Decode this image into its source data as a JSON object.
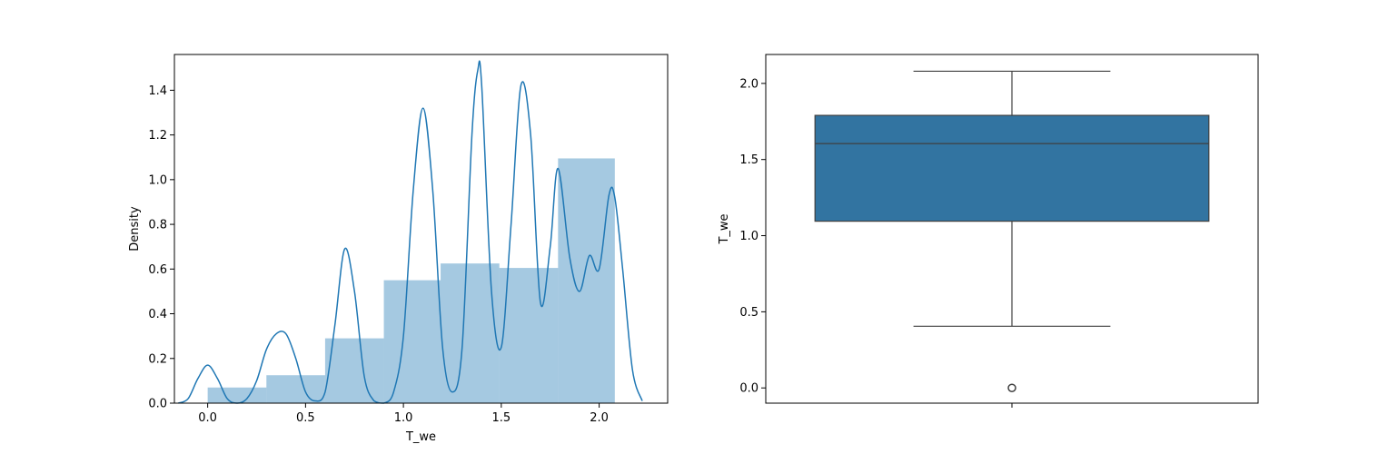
{
  "chart_data": [
    {
      "type": "bar",
      "subtype": "histogram-with-kde",
      "xlabel": "T_we",
      "ylabel": "Density",
      "xlim": [
        -0.17,
        2.35
      ],
      "ylim": [
        0,
        1.56
      ],
      "xticks": [
        0.0,
        0.5,
        1.0,
        1.5,
        2.0
      ],
      "xtick_labels": [
        "0.0",
        "0.5",
        "1.0",
        "1.5",
        "2.0"
      ],
      "yticks": [
        0.0,
        0.2,
        0.4,
        0.6,
        0.8,
        1.0,
        1.2,
        1.4
      ],
      "ytick_labels": [
        "0.0",
        "0.2",
        "0.4",
        "0.6",
        "0.8",
        "1.0",
        "1.2",
        "1.4"
      ],
      "grid": false,
      "colors": {
        "bar": "#1f77b4",
        "bar_opacity": 0.4,
        "kde": "#1f77b4"
      },
      "bins": [
        {
          "x0": 0.0,
          "x1": 0.3,
          "density": 0.07
        },
        {
          "x0": 0.3,
          "x1": 0.6,
          "density": 0.125
        },
        {
          "x0": 0.6,
          "x1": 0.9,
          "density": 0.29
        },
        {
          "x0": 0.9,
          "x1": 1.19,
          "density": 0.55
        },
        {
          "x0": 1.19,
          "x1": 1.49,
          "density": 0.625
        },
        {
          "x0": 1.49,
          "x1": 1.79,
          "density": 0.605
        },
        {
          "x0": 1.79,
          "x1": 2.08,
          "density": 1.095
        }
      ],
      "kde": {
        "x": [
          -0.15,
          -0.1,
          -0.05,
          0.0,
          0.05,
          0.1,
          0.15,
          0.2,
          0.25,
          0.3,
          0.35,
          0.4,
          0.45,
          0.5,
          0.55,
          0.6,
          0.65,
          0.7,
          0.75,
          0.8,
          0.85,
          0.9,
          0.95,
          1.0,
          1.05,
          1.1,
          1.15,
          1.2,
          1.25,
          1.3,
          1.35,
          1.38,
          1.4,
          1.45,
          1.5,
          1.55,
          1.6,
          1.65,
          1.7,
          1.75,
          1.79,
          1.85,
          1.9,
          1.95,
          2.0,
          2.05,
          2.08,
          2.12,
          2.17,
          2.22
        ],
        "y": [
          0.0,
          0.02,
          0.11,
          0.17,
          0.11,
          0.02,
          0.0,
          0.02,
          0.1,
          0.24,
          0.31,
          0.31,
          0.2,
          0.05,
          0.01,
          0.05,
          0.35,
          0.69,
          0.5,
          0.12,
          0.01,
          0.0,
          0.05,
          0.3,
          0.95,
          1.32,
          0.95,
          0.25,
          0.05,
          0.25,
          1.2,
          1.49,
          1.42,
          0.5,
          0.25,
          0.8,
          1.42,
          1.2,
          0.45,
          0.7,
          1.05,
          0.65,
          0.5,
          0.66,
          0.6,
          0.93,
          0.92,
          0.6,
          0.15,
          0.01
        ]
      }
    },
    {
      "type": "boxplot",
      "ylabel": "T_we",
      "ylim": [
        -0.1,
        2.19
      ],
      "yticks": [
        0.0,
        0.5,
        1.0,
        1.5,
        2.0
      ],
      "ytick_labels": [
        "0.0",
        "0.5",
        "1.0",
        "1.5",
        "2.0"
      ],
      "grid": false,
      "colors": {
        "box": "#3274a1",
        "line": "#3f3f3f"
      },
      "stats": {
        "whisker_low": 0.405,
        "q1": 1.095,
        "median": 1.605,
        "q3": 1.79,
        "whisker_high": 2.08,
        "outliers": [
          0.0
        ]
      }
    }
  ]
}
